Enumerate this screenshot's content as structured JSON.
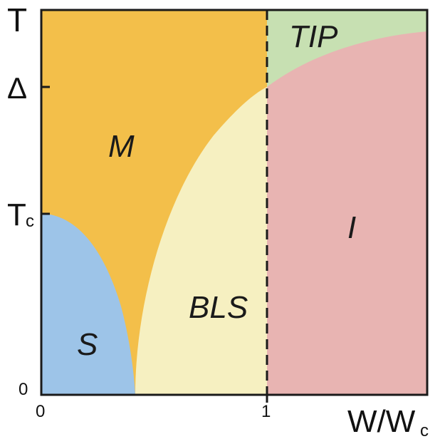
{
  "axes": {
    "y_label": "T",
    "x_label_main": "W/W",
    "x_label_sub": "c",
    "y_ticks": {
      "delta": "Δ",
      "tc_main": "T",
      "tc_sub": "c",
      "zero": "0"
    },
    "x_ticks": {
      "zero": "0",
      "one": "1"
    }
  },
  "regions": {
    "metal": "M",
    "superconductor": "S",
    "bls": "BLS",
    "tip": "TIP",
    "insulator": "I"
  },
  "colors": {
    "metal": "#f3bf4a",
    "superconductor": "#9dc4e8",
    "bls": "#f6f0c1",
    "tip": "#c7e0b2",
    "insulator": "#e8b4b2",
    "frame": "#1a1a1a"
  },
  "boundaries": {
    "critical_line_style": "dashed"
  }
}
